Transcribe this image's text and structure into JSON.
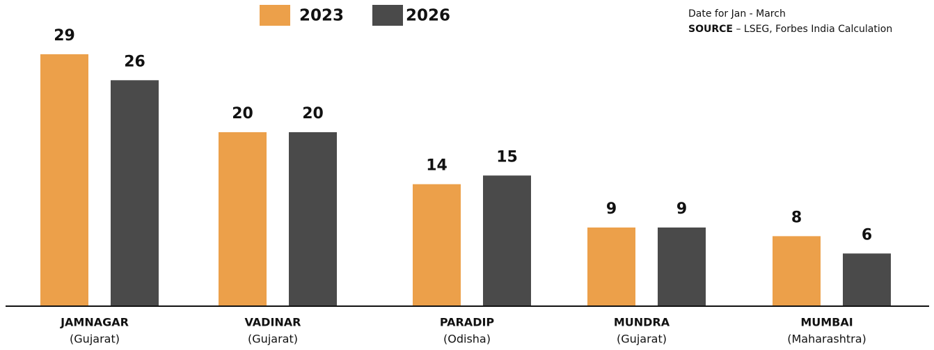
{
  "chart_data": {
    "type": "bar",
    "categories": [
      "JAMNAGAR",
      "VADINAR",
      "PARADIP",
      "MUNDRA",
      "MUMBAI"
    ],
    "regions": [
      "(Gujarat)",
      "(Gujarat)",
      "(Odisha)",
      "(Gujarat)",
      "(Maharashtra)"
    ],
    "series": [
      {
        "name": "2023",
        "color": "#eca04a",
        "values": [
          29,
          20,
          14,
          9,
          8
        ]
      },
      {
        "name": "2026",
        "color": "#4a4a4a",
        "values": [
          26,
          20,
          15,
          9,
          6
        ]
      }
    ],
    "note": "Date for Jan - March",
    "source_label": "SOURCE",
    "source": "– LSEG, Forbes India Calculation"
  }
}
